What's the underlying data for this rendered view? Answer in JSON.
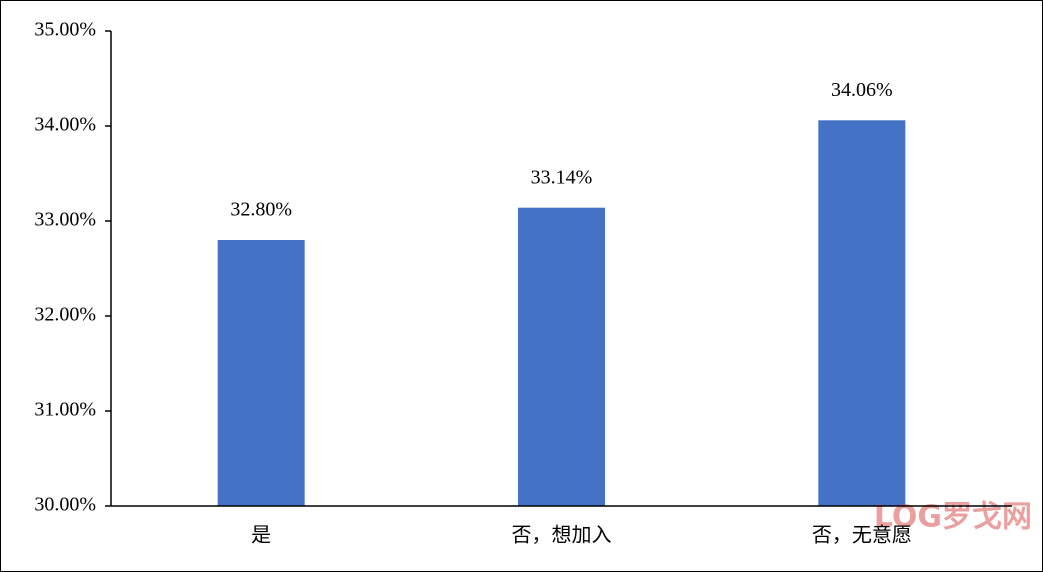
{
  "chart_data": {
    "type": "bar",
    "categories": [
      "是",
      "否，想加入",
      "否，无意愿"
    ],
    "values": [
      32.8,
      33.14,
      34.06
    ],
    "value_labels": [
      "32.80%",
      "33.14%",
      "34.06%"
    ],
    "color": "#4472c4",
    "ylim": [
      30,
      35
    ],
    "yticks": [
      {
        "value": 30,
        "label": "30.00%"
      },
      {
        "value": 31,
        "label": "31.00%"
      },
      {
        "value": 32,
        "label": "32.00%"
      },
      {
        "value": 33,
        "label": "33.00%"
      },
      {
        "value": 34,
        "label": "34.00%"
      },
      {
        "value": 35,
        "label": "35.00%"
      }
    ],
    "grid": false,
    "watermark": "LOG罗戈网"
  }
}
